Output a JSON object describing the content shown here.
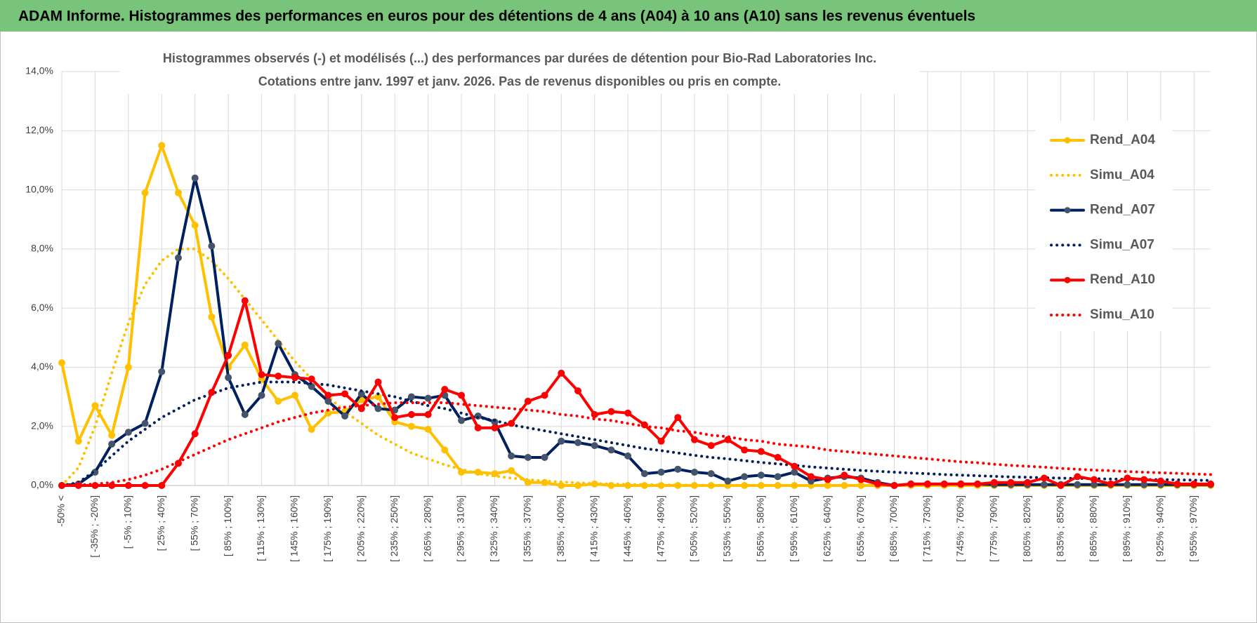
{
  "header": "ADAM Informe. Histogrammes des performances en euros pour des détentions de 4 ans (A04) à 10 ans (A10) sans les revenus éventuels",
  "chart_data": {
    "type": "line",
    "title": "Histogrammes observés (-) et modélisés (...) des performances par durées de détention pour Bio-Rad Laboratories Inc.",
    "subtitle": "Cotations entre janv. 1997 et janv. 2026. Pas de revenus disponibles ou pris en compte.",
    "categories": [
      "-50% <",
      null,
      "[ -35% ; -20%]",
      null,
      "[ -5% ; 10%]",
      null,
      "[ 25% ; 40%]",
      null,
      "[ 55% ; 70%]",
      null,
      "[ 85% ; 100%]",
      null,
      "[ 115% ; 130%]",
      null,
      "[ 145% ; 160%]",
      null,
      "[ 175% ; 190%]",
      null,
      "[ 205% ; 220%]",
      null,
      "[ 235% ; 250%]",
      null,
      "[ 265% ; 280%]",
      null,
      "[ 295% ; 310%]",
      null,
      "[ 325% ; 340%]",
      null,
      "[ 355% ; 370%]",
      null,
      "[ 385% ; 400%]",
      null,
      "[ 415% ; 430%]",
      null,
      "[ 445% ; 460%]",
      null,
      "[ 475% ; 490%]",
      null,
      "[ 505% ; 520%]",
      null,
      "[ 535% ; 550%]",
      null,
      "[ 565% ; 580%]",
      null,
      "[ 595% ; 610%]",
      null,
      "[ 625% ; 640%]",
      null,
      "[ 655% ; 670%]",
      null,
      "[ 685% ; 700%]",
      null,
      "[ 715% ; 730%]",
      null,
      "[ 745% ; 760%]",
      null,
      "[ 775% ; 790%]",
      null,
      "[ 805% ; 820%]",
      null,
      "[ 835% ; 850%]",
      null,
      "[ 865% ; 880%]",
      null,
      "[ 895% ; 910%]",
      null,
      "[ 925% ; 940%]",
      null,
      "[ 955% ; 970%]",
      null
    ],
    "series": [
      {
        "name": "Rend_A04",
        "color": "#FFC000",
        "style": "solid",
        "markers": true,
        "values": [
          4.15,
          1.5,
          2.7,
          1.7,
          4.0,
          9.9,
          11.5,
          9.9,
          8.8,
          5.7,
          4.0,
          4.75,
          3.6,
          2.85,
          3.05,
          1.9,
          2.45,
          2.5,
          2.9,
          3.0,
          2.15,
          2.0,
          1.9,
          1.2,
          0.45,
          0.45,
          0.4,
          0.5,
          0.1,
          0.1,
          0,
          0,
          0.05,
          0,
          0,
          0,
          0,
          0,
          0,
          0,
          0,
          0,
          0,
          0,
          0,
          0,
          0,
          0,
          0,
          0,
          0,
          0,
          0,
          0,
          0,
          0,
          0,
          0,
          0,
          0,
          0,
          0,
          0,
          0,
          0,
          0,
          0,
          0,
          0,
          0
        ]
      },
      {
        "name": "Simu_A04",
        "color": "#FFC000",
        "style": "dotted",
        "markers": false,
        "values": [
          0,
          0.6,
          2.0,
          3.8,
          5.5,
          6.8,
          7.6,
          8.0,
          8.0,
          7.6,
          7.0,
          6.3,
          5.6,
          4.9,
          4.2,
          3.6,
          3.0,
          2.5,
          2.1,
          1.7,
          1.4,
          1.1,
          0.9,
          0.7,
          0.55,
          0.4,
          0.32,
          0.25,
          0.2,
          0.15,
          0.12,
          0.09,
          0.07,
          0.05,
          0.04,
          0.03,
          0.02,
          0.02,
          0.01,
          0.01,
          0.01,
          0.01,
          0.01,
          0.01,
          0.01,
          0.01,
          0.01,
          0.01,
          0.01,
          0.01,
          0,
          0,
          0,
          0,
          0,
          0,
          0,
          0,
          0,
          0,
          0,
          0,
          0,
          0,
          0,
          0,
          0,
          0,
          0,
          0
        ]
      },
      {
        "name": "Rend_A07",
        "color": "#002060",
        "style": "solid",
        "markers": true,
        "marker_color": "#44546A",
        "values": [
          0,
          0.05,
          0.45,
          1.4,
          1.8,
          2.1,
          3.85,
          7.7,
          10.4,
          8.1,
          3.65,
          2.4,
          3.05,
          4.8,
          3.75,
          3.35,
          2.85,
          2.35,
          3.1,
          2.6,
          2.55,
          3.0,
          2.95,
          3.05,
          2.2,
          2.35,
          2.15,
          1.0,
          0.95,
          0.95,
          1.5,
          1.45,
          1.35,
          1.2,
          1.0,
          0.4,
          0.45,
          0.55,
          0.45,
          0.4,
          0.15,
          0.3,
          0.35,
          0.3,
          0.45,
          0.15,
          0.25,
          0.3,
          0.25,
          0.1,
          0,
          0.05,
          0.05,
          0.05,
          0.05,
          0.05,
          0.03,
          0.03,
          0.03,
          0.03,
          0.03,
          0.03,
          0.03,
          0.03,
          0.03,
          0.03,
          0.03,
          0.03,
          0.03,
          0.03
        ]
      },
      {
        "name": "Simu_A07",
        "color": "#002060",
        "style": "dotted",
        "markers": false,
        "values": [
          0,
          0.1,
          0.5,
          1.0,
          1.5,
          1.9,
          2.3,
          2.6,
          2.9,
          3.1,
          3.3,
          3.4,
          3.5,
          3.5,
          3.5,
          3.45,
          3.4,
          3.3,
          3.2,
          3.1,
          3.0,
          2.85,
          2.7,
          2.6,
          2.45,
          2.3,
          2.2,
          2.05,
          1.95,
          1.85,
          1.75,
          1.65,
          1.55,
          1.45,
          1.35,
          1.25,
          1.18,
          1.1,
          1.02,
          0.95,
          0.9,
          0.84,
          0.78,
          0.73,
          0.68,
          0.63,
          0.59,
          0.55,
          0.51,
          0.48,
          0.45,
          0.42,
          0.4,
          0.37,
          0.35,
          0.33,
          0.31,
          0.29,
          0.28,
          0.26,
          0.25,
          0.24,
          0.23,
          0.22,
          0.21,
          0.2,
          0.2,
          0.19,
          0.18,
          0.17
        ]
      },
      {
        "name": "Rend_A10",
        "color": "#FF0000",
        "style": "solid",
        "markers": true,
        "values": [
          0,
          0,
          0,
          0,
          0,
          0,
          0,
          0.75,
          1.75,
          3.15,
          4.4,
          6.25,
          3.75,
          3.7,
          3.65,
          3.6,
          3.05,
          3.1,
          2.6,
          3.5,
          2.3,
          2.4,
          2.4,
          3.25,
          3.05,
          1.95,
          1.95,
          2.1,
          2.85,
          3.05,
          3.8,
          3.2,
          2.4,
          2.5,
          2.45,
          2.05,
          1.5,
          2.3,
          1.55,
          1.35,
          1.55,
          1.2,
          1.15,
          0.95,
          0.65,
          0.3,
          0.2,
          0.35,
          0.2,
          0.05,
          0,
          0.05,
          0.05,
          0.05,
          0.05,
          0.05,
          0.1,
          0.1,
          0.1,
          0.25,
          0,
          0.3,
          0.2,
          0.05,
          0.25,
          0.2,
          0.15,
          0.05,
          0.05,
          0.05
        ]
      },
      {
        "name": "Simu_A10",
        "color": "#FF0000",
        "style": "dotted",
        "markers": false,
        "values": [
          0,
          0.02,
          0.05,
          0.1,
          0.2,
          0.35,
          0.55,
          0.8,
          1.05,
          1.3,
          1.55,
          1.75,
          1.95,
          2.15,
          2.3,
          2.45,
          2.55,
          2.65,
          2.7,
          2.75,
          2.8,
          2.8,
          2.8,
          2.8,
          2.75,
          2.7,
          2.65,
          2.6,
          2.55,
          2.5,
          2.4,
          2.35,
          2.25,
          2.2,
          2.1,
          2.0,
          1.95,
          1.85,
          1.8,
          1.7,
          1.65,
          1.55,
          1.5,
          1.4,
          1.35,
          1.3,
          1.2,
          1.15,
          1.1,
          1.05,
          1.0,
          0.95,
          0.9,
          0.85,
          0.8,
          0.77,
          0.72,
          0.68,
          0.65,
          0.62,
          0.58,
          0.55,
          0.52,
          0.5,
          0.47,
          0.45,
          0.43,
          0.41,
          0.39,
          0.37
        ]
      }
    ],
    "ylim": [
      0,
      14
    ],
    "yticks": [
      {
        "value": 0,
        "label": "0,0%"
      },
      {
        "value": 2,
        "label": "2,0%"
      },
      {
        "value": 4,
        "label": "4,0%"
      },
      {
        "value": 6,
        "label": "6,0%"
      },
      {
        "value": 8,
        "label": "8,0%"
      },
      {
        "value": 10,
        "label": "10,0%"
      },
      {
        "value": 12,
        "label": "12,0%"
      },
      {
        "value": 14,
        "label": "14,0%"
      }
    ],
    "grid": true,
    "legend": "right"
  }
}
